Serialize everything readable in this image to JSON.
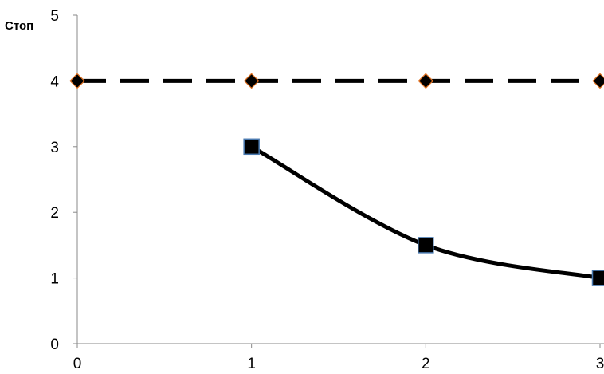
{
  "chart_data": {
    "type": "line",
    "title": "",
    "xlabel": "",
    "ylabel": "Стоп",
    "xlim": [
      0,
      3
    ],
    "ylim": [
      0,
      5
    ],
    "x_ticks": [
      "0",
      "1",
      "2",
      "3"
    ],
    "y_ticks": [
      "0",
      "1",
      "2",
      "3",
      "4",
      "5"
    ],
    "grid": false,
    "legend": "none",
    "series": [
      {
        "line_style": "dashed",
        "marker": "diamond",
        "line_color": "#000000",
        "marker_fill": "#000000",
        "marker_edge": "#e07020",
        "smooth": false,
        "points": [
          {
            "x": 0,
            "y": 4
          },
          {
            "x": 1,
            "y": 4
          },
          {
            "x": 2,
            "y": 4
          },
          {
            "x": 3,
            "y": 4
          }
        ]
      },
      {
        "line_style": "solid",
        "marker": "square",
        "line_color": "#000000",
        "marker_fill": "#000000",
        "marker_edge": "#4a7ab0",
        "smooth": true,
        "points": [
          {
            "x": 1,
            "y": 3
          },
          {
            "x": 2,
            "y": 1.5
          },
          {
            "x": 3,
            "y": 1
          }
        ]
      }
    ]
  }
}
